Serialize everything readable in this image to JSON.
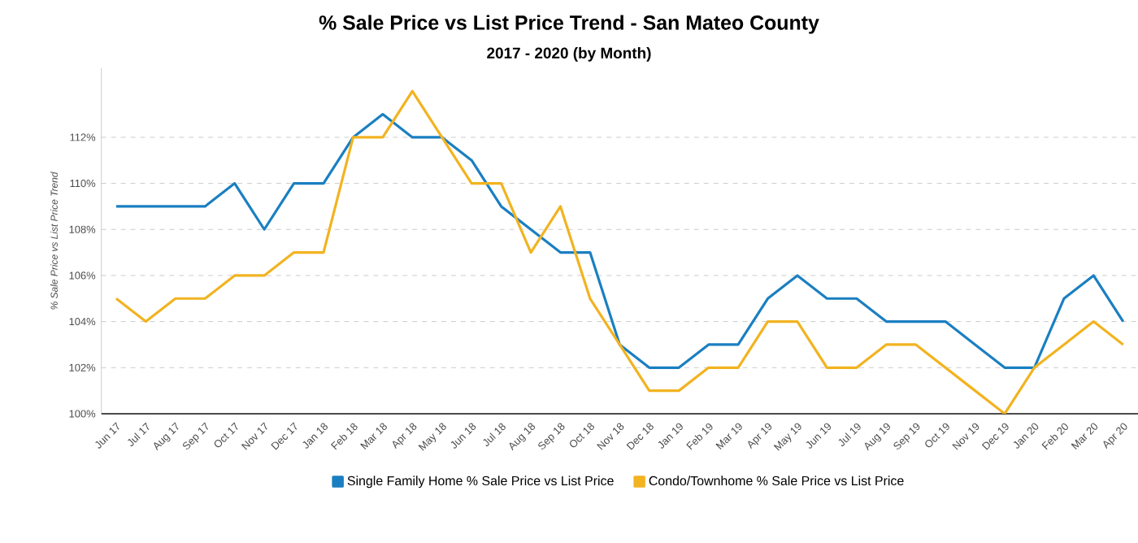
{
  "chart_data": {
    "type": "line",
    "title": "% Sale Price vs List Price Trend - San Mateo County",
    "subtitle": "2017 - 2020 (by Month)",
    "ylabel": "% Sale Price vs List Price Trend",
    "categories": [
      "Jun 17",
      "Jul 17",
      "Aug 17",
      "Sep 17",
      "Oct 17",
      "Nov 17",
      "Dec 17",
      "Jan 18",
      "Feb 18",
      "Mar 18",
      "Apr 18",
      "May 18",
      "Jun 18",
      "Jul 18",
      "Aug 18",
      "Sep 18",
      "Oct 18",
      "Nov 18",
      "Dec 18",
      "Jan 19",
      "Feb 19",
      "Mar 19",
      "Apr 19",
      "May 19",
      "Jun 19",
      "Jul 19",
      "Aug 19",
      "Sep 19",
      "Oct 19",
      "Nov 19",
      "Dec 19",
      "Jan 20",
      "Feb 20",
      "Mar 20",
      "Apr 20"
    ],
    "series": [
      {
        "name": "Single Family Home % Sale Price vs List Price",
        "color": "#1a7fc1",
        "values": [
          109,
          109,
          109,
          109,
          110,
          108,
          110,
          110,
          112,
          113,
          112,
          112,
          111,
          109,
          108,
          107,
          107,
          103,
          102,
          102,
          103,
          103,
          105,
          106,
          105,
          105,
          104,
          104,
          104,
          103,
          102,
          102,
          105,
          106,
          104
        ]
      },
      {
        "name": "Condo/Townhome % Sale Price vs List Price",
        "color": "#f2b320",
        "values": [
          105,
          104,
          105,
          105,
          106,
          106,
          107,
          107,
          112,
          112,
          114,
          112,
          110,
          110,
          107,
          109,
          105,
          103,
          101,
          101,
          102,
          102,
          104,
          104,
          102,
          102,
          103,
          103,
          102,
          101,
          100,
          102,
          103,
          104,
          103
        ]
      }
    ],
    "ylim": [
      100,
      115
    ],
    "yticks": [
      {
        "value": 100,
        "label": "100%"
      },
      {
        "value": 102,
        "label": "102%"
      },
      {
        "value": 104,
        "label": "104%"
      },
      {
        "value": 106,
        "label": "106%"
      },
      {
        "value": 108,
        "label": "108%"
      },
      {
        "value": 110,
        "label": "110%"
      },
      {
        "value": 112,
        "label": "112%"
      }
    ],
    "grid": "y",
    "legend": "bottom",
    "marker": "none",
    "line_style": "solid"
  }
}
